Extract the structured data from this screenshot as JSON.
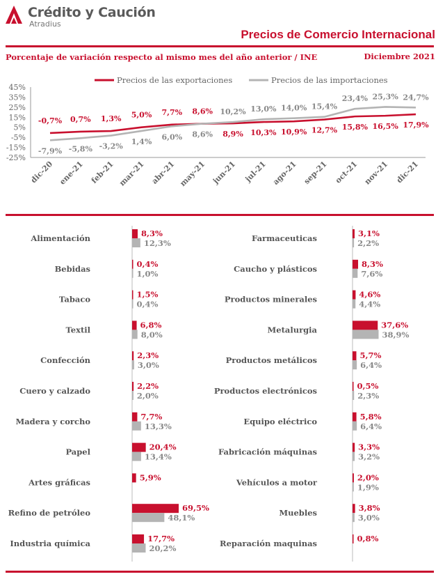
{
  "header": {
    "brand": "Crédito y Caución",
    "brand_sub": "Atradius",
    "title": "Precios de Comercio Internacional",
    "subtitle": "Porcentaje de variación respecto al mismo mes del año anterior / INE",
    "date": "Diciembre  2021"
  },
  "colors": {
    "export": "#c8102e",
    "import": "#b4b4b4"
  },
  "chart_data": [
    {
      "type": "line",
      "categories": [
        "dic-20",
        "ene-21",
        "feb-21",
        "mar-21",
        "abr-21",
        "may-21",
        "jun-21",
        "jul-21",
        "ago-21",
        "sep-21",
        "oct-21",
        "nov-21",
        "dic-21"
      ],
      "ylim": [
        -25,
        45
      ],
      "yticks": [
        -25,
        -15,
        -5,
        5,
        15,
        25,
        35,
        45
      ],
      "ytick_labels": [
        "-25%",
        "-15%",
        "-5%",
        "5%",
        "15%",
        "25%",
        "35%",
        "45%"
      ],
      "grid": false,
      "legend_position": "top",
      "series": [
        {
          "name": "Precios de las exportaciones",
          "values": [
            -0.7,
            0.7,
            1.3,
            5.0,
            7.7,
            8.6,
            8.9,
            10.3,
            10.9,
            12.7,
            15.8,
            16.5,
            17.9
          ],
          "labels": [
            "-0,7%",
            "0,7%",
            "1,3%",
            "5,0%",
            "7,7%",
            "8,6%",
            "8,9%",
            "10,3%",
            "10,9%",
            "12,7%",
            "15,8%",
            "16,5%",
            "17,9%"
          ]
        },
        {
          "name": "Precios de las importaciones",
          "values": [
            -7.9,
            -5.8,
            -3.2,
            1.4,
            6.0,
            8.6,
            10.2,
            13.0,
            14.0,
            15.4,
            23.4,
            25.3,
            24.7
          ],
          "labels": [
            "-7,9%",
            "-5,8%",
            "-3,2%",
            "1,4%",
            "6,0%",
            "8,6%",
            "10,2%",
            "13,0%",
            "14,0%",
            "15,4%",
            "23,4%",
            "25,3%",
            "24,7%"
          ]
        }
      ]
    },
    {
      "type": "bar",
      "orientation": "horizontal",
      "groups": [
        {
          "categories": [
            "Alimentación",
            "Bebidas",
            "Tabaco",
            "Textil",
            "Confección",
            "Cuero y calzado",
            "Madera y corcho",
            "Papel",
            "Artes gráficas",
            "Refino de petróleo",
            "Industria química"
          ],
          "export": [
            8.3,
            0.4,
            1.5,
            6.8,
            2.3,
            2.2,
            7.7,
            20.4,
            5.9,
            69.5,
            17.7
          ],
          "export_labels": [
            "8,3%",
            "0,4%",
            "1,5%",
            "6,8%",
            "2,3%",
            "2,2%",
            "7,7%",
            "20,4%",
            "5,9%",
            "69,5%",
            "17,7%"
          ],
          "import": [
            12.3,
            1.0,
            0.4,
            8.0,
            3.0,
            2.0,
            13.3,
            13.4,
            null,
            48.1,
            20.2
          ],
          "import_labels": [
            "12,3%",
            "1,0%",
            "0,4%",
            "8,0%",
            "3,0%",
            "2,0%",
            "13,3%",
            "13,4%",
            "",
            "48,1%",
            "20,2%"
          ]
        },
        {
          "categories": [
            "Farmaceuticas",
            "Caucho y plásticos",
            "Productos minerales",
            "Metalurgia",
            "Productos metálicos",
            "Productos electrónicos",
            "Equipo eléctrico",
            "Fabricación máquinas",
            "Vehículos a motor",
            "Muebles",
            "Reparación maquinas"
          ],
          "export": [
            3.1,
            8.3,
            4.6,
            37.6,
            5.7,
            0.5,
            5.8,
            3.3,
            2.0,
            3.8,
            0.8
          ],
          "export_labels": [
            "3,1%",
            "8,3%",
            "4,6%",
            "37,6%",
            "5,7%",
            "0,5%",
            "5,8%",
            "3,3%",
            "2,0%",
            "3,8%",
            "0,8%"
          ],
          "import": [
            2.2,
            7.6,
            4.4,
            38.9,
            6.4,
            2.3,
            6.4,
            3.2,
            1.9,
            3.0,
            null
          ],
          "import_labels": [
            "2,2%",
            "7,6%",
            "4,4%",
            "38,9%",
            "6,4%",
            "2,3%",
            "6,4%",
            "3,2%",
            "1,9%",
            "3,0%",
            ""
          ]
        }
      ]
    }
  ]
}
